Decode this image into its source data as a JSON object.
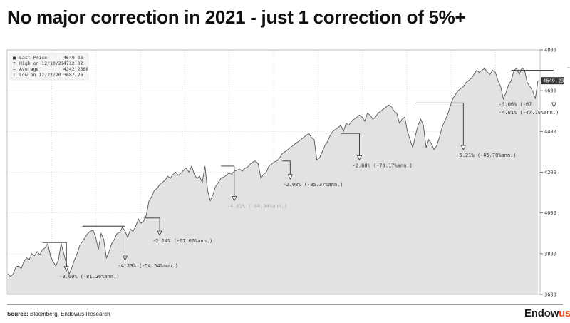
{
  "title": "No major correction in 2021 - just 1 correction of 5%+",
  "source": {
    "label": "Source:",
    "text": " Bloomberg, Endowus Research"
  },
  "logo": {
    "main": "Endow",
    "accent": "us",
    "accent_color": "#e8501a"
  },
  "chart_data": {
    "type": "area",
    "ylim": [
      3600,
      4800
    ],
    "yticks": [
      3600,
      3800,
      4000,
      4200,
      4400,
      4600,
      4800
    ],
    "last_price_label": "4649.23",
    "fill_color": "#e2e2e2",
    "line_color": "#555555",
    "legend": [
      {
        "label": "Last Price",
        "value": "4649.23"
      },
      {
        "label": "High on 12/10/21",
        "value": "4712.02"
      },
      {
        "label": "Average",
        "value": "4242.2388"
      },
      {
        "label": "Low on 12/22/20",
        "value": "3687.26"
      }
    ],
    "series_values": [
      3702,
      3688,
      3700,
      3735,
      3740,
      3728,
      3760,
      3780,
      3770,
      3800,
      3790,
      3810,
      3795,
      3820,
      3830,
      3850,
      3790,
      3760,
      3740,
      3770,
      3850,
      3800,
      3750,
      3700,
      3730,
      3770,
      3800,
      3840,
      3860,
      3880,
      3900,
      3910,
      3915,
      3880,
      3820,
      3900,
      3870,
      3780,
      3810,
      3850,
      3870,
      3900,
      3905,
      3930,
      3910,
      3880,
      3920,
      3910,
      3935,
      3970,
      3950,
      3960,
      3990,
      4060,
      4080,
      4110,
      4120,
      4140,
      4150,
      4160,
      4180,
      4170,
      4190,
      4200,
      4185,
      4195,
      4210,
      4220,
      4200,
      4230,
      4190,
      4170,
      4180,
      4150,
      4230,
      4110,
      4060,
      4090,
      4130,
      4150,
      4170,
      4175,
      4185,
      4195,
      4190,
      4205,
      4210,
      4215,
      4205,
      4220,
      4225,
      4240,
      4250,
      4255,
      4240,
      4170,
      4190,
      4200,
      4230,
      4240,
      4250,
      4255,
      4270,
      4290,
      4300,
      4310,
      4320,
      4330,
      4340,
      4350,
      4360,
      4370,
      4380,
      4390,
      4370,
      4360,
      4260,
      4270,
      4300,
      4330,
      4350,
      4380,
      4400,
      4410,
      4420,
      4430,
      4400,
      4440,
      4430,
      4450,
      4460,
      4470,
      4480,
      4470,
      4450,
      4490,
      4480,
      4460,
      4470,
      4490,
      4500,
      4510,
      4520,
      4530,
      4520,
      4500,
      4490,
      4440,
      4460,
      4470,
      4400,
      4360,
      4320,
      4380,
      4430,
      4460,
      4430,
      4320,
      4360,
      4340,
      4310,
      4330,
      4370,
      4420,
      4450,
      4480,
      4520,
      4560,
      4580,
      4600,
      4610,
      4620,
      4640,
      4650,
      4660,
      4680,
      4700,
      4690,
      4700,
      4710,
      4690,
      4680,
      4700,
      4690,
      4650,
      4620,
      4560,
      4590,
      4630,
      4650,
      4700,
      4710,
      4680,
      4712,
      4700,
      4640,
      4620,
      4600,
      4560,
      4649
    ],
    "corrections": [
      {
        "label": "-3.60% (-81.26%ann.)",
        "peak": 3855,
        "trough": 3716,
        "i0": 13,
        "i1": 22
      },
      {
        "label": "-4.23% (-54.54%ann.)",
        "peak": 3935,
        "trough": 3768,
        "i0": 28,
        "i1": 44
      },
      {
        "label": "-2.14% (-67.60%ann.)",
        "peak": 3975,
        "trough": 3890,
        "i0": 51,
        "i1": 57
      },
      {
        "label": "-4.01% (-84.84%ann.)",
        "peak": 4230,
        "trough": 4060,
        "i0": 80,
        "i1": 85
      },
      {
        "label": "-2.08% (-85.37%ann.)",
        "peak": 4255,
        "trough": 4167,
        "i0": 103,
        "i1": 106
      },
      {
        "label": "-2.88% (-78.17%ann.)",
        "peak": 4390,
        "trough": 4260,
        "i0": 125,
        "i1": 132
      },
      {
        "label": "-5.21% (-45.70%ann.)",
        "peak": 4540,
        "trough": 4310,
        "i0": 153,
        "i1": 171
      },
      {
        "label": "-4.01% (-47.79%ann.)",
        "peak": 4700,
        "trough": 4520,
        "i0": 189,
        "i1": 205
      },
      {
        "label": "-3.06% (-67",
        "peak": 4712,
        "trough": 4560,
        "i0": 210,
        "i1": 218
      }
    ]
  }
}
